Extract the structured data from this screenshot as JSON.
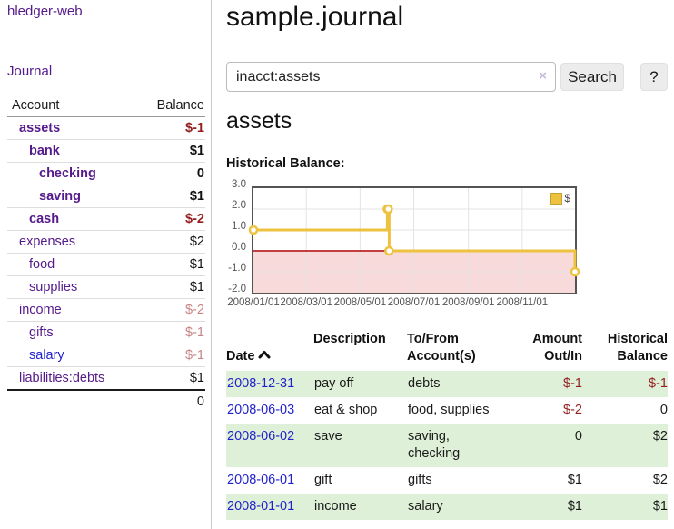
{
  "colors": {
    "link_purple": "#551a8b",
    "link_blue": "#2222cc",
    "negative_red": "#941f1f",
    "negative_rose": "#c98585",
    "row_green": "#dff0d8",
    "chart_gold": "#edc240",
    "axis_text": "#545454",
    "chart_border": "#545454"
  },
  "brand": {
    "label": "hledger-web"
  },
  "sidebar": {
    "nav": {
      "journal_label": "Journal"
    },
    "accounts_table": {
      "headers": {
        "account": "Account",
        "balance": "Balance"
      },
      "rows": [
        {
          "name": "assets",
          "balance": "$-1"
        },
        {
          "name": "bank",
          "balance": "$1"
        },
        {
          "name": "checking",
          "balance": "0"
        },
        {
          "name": "saving",
          "balance": "$1"
        },
        {
          "name": "cash",
          "balance": "$-2"
        },
        {
          "name": "expenses",
          "balance": "$2"
        },
        {
          "name": "food",
          "balance": "$1"
        },
        {
          "name": "supplies",
          "balance": "$1"
        },
        {
          "name": "income",
          "balance": "$-2"
        },
        {
          "name": "gifts",
          "balance": "$-1"
        },
        {
          "name": "salary",
          "balance": "$-1"
        },
        {
          "name": "liabilities:debts",
          "balance": "$1"
        }
      ],
      "total": "0"
    }
  },
  "main": {
    "title": "sample.journal",
    "search": {
      "value": "inacct:assets",
      "clear_icon": "×",
      "submit_label": "Search",
      "help_label": "?"
    },
    "account_heading": "assets",
    "chart_title": "Historical Balance:"
  },
  "chart_data": {
    "type": "line",
    "title": "Historical Balance:",
    "series": [
      {
        "name": "$",
        "color": "#edc240",
        "style": "step",
        "points": [
          {
            "date": "2008-01-01",
            "value": 1
          },
          {
            "date": "2008-06-01",
            "value": 2
          },
          {
            "date": "2008-06-02",
            "value": 2
          },
          {
            "date": "2008-06-03",
            "value": 0
          },
          {
            "date": "2008-12-31",
            "value": -1
          }
        ]
      }
    ],
    "x_ticks": [
      "2008/01/01",
      "2008/03/01",
      "2008/05/01",
      "2008/07/01",
      "2008/09/01",
      "2008/11/01"
    ],
    "y_ticks": [
      3.0,
      2.0,
      1.0,
      0.0,
      -1.0,
      -2.0
    ],
    "ylim": [
      -2,
      3
    ],
    "x_start": "2008-01-01",
    "x_range_days": 365,
    "grid": true,
    "grid_color": "#e3e3e3",
    "zero_line_color": "#b00000",
    "negative_region_color": "#f9dada",
    "legend_position": "top-right"
  },
  "register": {
    "headers": {
      "date": "Date",
      "description": "Description",
      "accounts": "To/From\nAccount(s)",
      "amount": "Amount\nOut/In",
      "balance": "Historical\nBalance"
    },
    "rows": [
      {
        "date": "2008-12-31",
        "description": "pay off",
        "accounts": "debts",
        "amount": "$-1",
        "balance": "$-1"
      },
      {
        "date": "2008-06-03",
        "description": "eat & shop",
        "accounts": "food, supplies",
        "amount": "$-2",
        "balance": "0"
      },
      {
        "date": "2008-06-02",
        "description": "save",
        "accounts": "saving,\nchecking",
        "amount": "0",
        "balance": "$2"
      },
      {
        "date": "2008-06-01",
        "description": "gift",
        "accounts": "gifts",
        "amount": "$1",
        "balance": "$2"
      },
      {
        "date": "2008-01-01",
        "description": "income",
        "accounts": "salary",
        "amount": "$1",
        "balance": "$1"
      }
    ]
  }
}
